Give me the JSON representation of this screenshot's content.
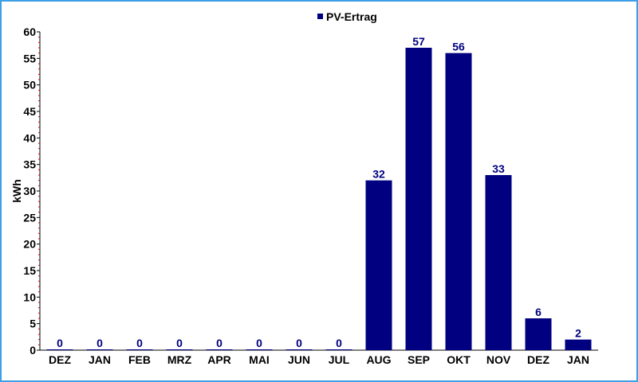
{
  "chart_data": {
    "type": "bar",
    "categories": [
      "DEZ",
      "JAN",
      "FEB",
      "MRZ",
      "APR",
      "MAI",
      "JUN",
      "JUL",
      "AUG",
      "SEP",
      "OKT",
      "NOV",
      "DEZ",
      "JAN"
    ],
    "series": [
      {
        "name": "PV-Ertrag",
        "values": [
          0,
          0,
          0,
          0,
          0,
          0,
          0,
          0,
          32,
          57,
          56,
          33,
          6,
          2
        ],
        "color": "#000080"
      }
    ],
    "xlabel": "",
    "ylabel": "kWh",
    "ylim": [
      0,
      60
    ],
    "yticks": [
      0,
      5,
      10,
      15,
      20,
      25,
      30,
      35,
      40,
      45,
      50,
      55,
      60
    ],
    "grid": false,
    "legend": "top-center",
    "data_labels": true
  }
}
